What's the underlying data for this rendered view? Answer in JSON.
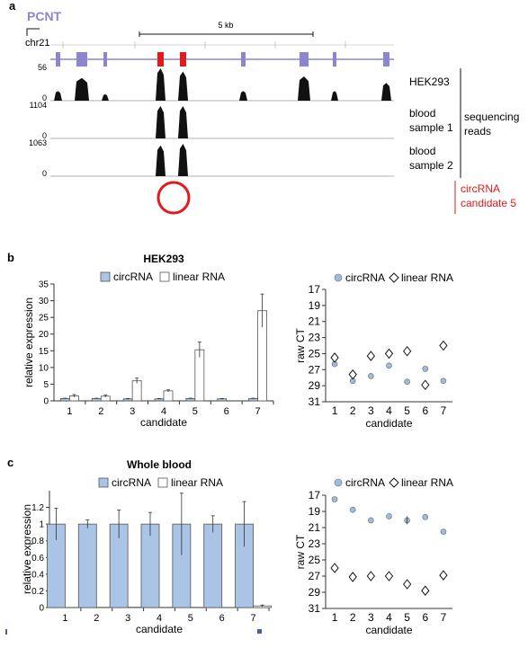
{
  "colors": {
    "exon": "#8c86d0",
    "intron": "#8c86d0",
    "circ_exon": "#e31a1c",
    "track": "#111111",
    "circ_label": "#e31a1c",
    "circ_marker": "#e31a1c",
    "bar_circ": "#a9c4e4",
    "bar_linear": "#ffffff",
    "point_circ": "#9fbcdf"
  },
  "panel_a": {
    "letter": "a",
    "gene": "PCNT",
    "chrom": "chr21",
    "scale": "5 kb",
    "tracks": [
      {
        "max": "56",
        "min": "0",
        "label": [
          "HEK293"
        ]
      },
      {
        "max": "1104",
        "min": "0",
        "label": [
          "blood",
          "sample 1"
        ]
      },
      {
        "max": "1063",
        "min": "0",
        "label": [
          "blood",
          "sample 2"
        ]
      }
    ],
    "bracket_label": [
      "sequencing",
      "reads"
    ],
    "circ_label": [
      "circRNA",
      "candidate 5"
    ]
  },
  "panel_b": {
    "letter": "b"
  },
  "panel_c": {
    "letter": "c"
  },
  "chart_data": [
    {
      "panel": "b",
      "type": "bar",
      "title": "HEK293",
      "xlabel": "candidate",
      "ylabel": "relative expression",
      "ylim": [
        0,
        35
      ],
      "yticks": [
        0,
        5,
        10,
        15,
        20,
        25,
        30,
        35
      ],
      "categories": [
        "1",
        "2",
        "3",
        "4",
        "5",
        "6",
        "7"
      ],
      "series": [
        {
          "name": "circRNA",
          "values": [
            0.7,
            0.7,
            0.6,
            0.6,
            0.7,
            0.6,
            0.7
          ],
          "errors": [
            0.1,
            0.1,
            0.1,
            0.1,
            0.1,
            0.1,
            0.1
          ]
        },
        {
          "name": "linear RNA",
          "values": [
            1.5,
            1.4,
            6,
            3,
            15.3,
            0,
            27
          ],
          "errors": [
            0.4,
            0.3,
            0.8,
            0.3,
            2.3,
            0,
            5
          ]
        }
      ]
    },
    {
      "panel": "b",
      "type": "scatter",
      "xlabel": "candidate",
      "ylabel": "raw CT",
      "ylim": [
        31,
        17
      ],
      "yticks": [
        17,
        19,
        21,
        23,
        25,
        27,
        29,
        31
      ],
      "categories": [
        "1",
        "2",
        "3",
        "4",
        "5",
        "6",
        "7"
      ],
      "series": [
        {
          "name": "circRNA",
          "marker": "circle",
          "values": [
            26.3,
            28.4,
            27.8,
            26.5,
            28.5,
            26.9,
            28.4
          ]
        },
        {
          "name": "linear RNA",
          "marker": "diamond",
          "values": [
            25.5,
            27.6,
            25.3,
            25.0,
            24.7,
            28.9,
            24.0
          ]
        }
      ]
    },
    {
      "panel": "c",
      "type": "bar",
      "title": "Whole blood",
      "xlabel": "candidate",
      "ylabel": "relative expression",
      "ylim": [
        0,
        1.4
      ],
      "yticks": [
        "0",
        "0.2",
        "0.4",
        "0.6",
        "0.8",
        "1",
        "1.2"
      ],
      "categories": [
        "1",
        "2",
        "3",
        "4",
        "5",
        "6",
        "7"
      ],
      "series": [
        {
          "name": "circRNA",
          "values": [
            1,
            1,
            1,
            1,
            1,
            1,
            1
          ],
          "errors": [
            0.19,
            0.05,
            0.17,
            0.14,
            0.37,
            0.1,
            0.27
          ]
        },
        {
          "name": "linear RNA",
          "values": [
            0.002,
            0.003,
            0.004,
            0.003,
            0.003,
            0.002,
            0.02
          ],
          "errors": [
            0,
            0,
            0,
            0,
            0,
            0,
            0.01
          ]
        }
      ]
    },
    {
      "panel": "c",
      "type": "scatter",
      "xlabel": "candidate",
      "ylabel": "raw CT",
      "ylim": [
        31,
        17
      ],
      "yticks": [
        17,
        19,
        21,
        23,
        25,
        27,
        29,
        31
      ],
      "categories": [
        "1",
        "2",
        "3",
        "4",
        "5",
        "6",
        "7"
      ],
      "series": [
        {
          "name": "circRNA",
          "marker": "circle",
          "values": [
            17.5,
            18.8,
            20.1,
            19.6,
            20.1,
            19.7,
            21.5
          ]
        },
        {
          "name": "linear RNA",
          "marker": "diamond",
          "values": [
            26.0,
            27.1,
            27.0,
            27.0,
            28.0,
            28.8,
            26.9
          ]
        }
      ]
    }
  ]
}
